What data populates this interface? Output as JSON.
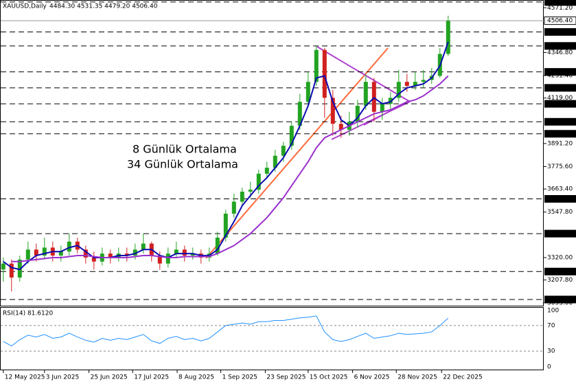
{
  "chart_data": [
    {
      "type": "candlestick",
      "title": "XAUUSD,Daily",
      "subtitle": "4484.30 4531.35 4479.20 4506.40",
      "xlim": [
        -0.4,
        65.6
      ],
      "xticks": [
        {
          "value": 0,
          "label": "12 May 2025"
        },
        {
          "value": 5,
          "label": "3 Jun 2025"
        },
        {
          "value": 10.4,
          "label": "25 Jun 2025"
        },
        {
          "value": 15.7,
          "label": "17 Jul 2025"
        },
        {
          "value": 21.1,
          "label": "8 Aug 2025"
        },
        {
          "value": 26.4,
          "label": "1 Sep 2025"
        },
        {
          "value": 31.8,
          "label": "23 Sep 2025"
        },
        {
          "value": 37,
          "label": "15 Oct 2025"
        },
        {
          "value": 42.4,
          "label": "6 Nov 2025"
        },
        {
          "value": 47.7,
          "label": "28 Nov 2025"
        },
        {
          "value": 53.2,
          "label": "22 Dec 2025"
        }
      ],
      "ylim": [
        3079,
        4610
      ],
      "yticks": [
        {
          "value": 4571.2,
          "label": "4571.20"
        },
        {
          "value": 4346.8,
          "label": "4346.80"
        },
        {
          "value": 4231.4,
          "label": "4231.40"
        },
        {
          "value": 4119,
          "label": "4119.00"
        },
        {
          "value": 3891.2,
          "label": "3891.20"
        },
        {
          "value": 3775.6,
          "label": "3775.60"
        },
        {
          "value": 3663.4,
          "label": "3663.40"
        },
        {
          "value": 3547.8,
          "label": "3547.80"
        },
        {
          "value": 3320,
          "label": "3320.00"
        },
        {
          "value": 3207.8,
          "label": "3207.80"
        },
        {
          "value": 3093,
          "label": "3093.00"
        }
      ],
      "levels": [
        {
          "value": 4600,
          "label": "4600.00"
        },
        {
          "value": 4450,
          "label": "4450.00"
        },
        {
          "value": 4380,
          "label": "4380.00"
        },
        {
          "value": 4250,
          "label": "4250.00"
        },
        {
          "value": 4170,
          "label": "4170.00"
        },
        {
          "value": 4090,
          "label": "4090.00"
        },
        {
          "value": 4000,
          "label": "4000.00"
        },
        {
          "value": 3940,
          "label": "3940.00"
        },
        {
          "value": 3614,
          "label": "3614.00"
        },
        {
          "value": 3440,
          "label": "3440.00"
        },
        {
          "value": 3250,
          "label": "3250.00"
        },
        {
          "value": 3110,
          "label": "3110.00"
        }
      ],
      "last_price": {
        "value": 4506.4,
        "label": "4506.40"
      },
      "up_color": "#22a322",
      "down_color": "#d02020",
      "open": [
        3260,
        3290,
        3220,
        3310,
        3360,
        3330,
        3370,
        3330,
        3350,
        3400,
        3360,
        3320,
        3300,
        3340,
        3320,
        3340,
        3330,
        3360,
        3390,
        3330,
        3290,
        3340,
        3360,
        3330,
        3340,
        3320,
        3340,
        3420,
        3540,
        3600,
        3650,
        3660,
        3740,
        3770,
        3830,
        3880,
        3980,
        4100,
        4200,
        4360,
        4120,
        3990,
        3960,
        4000,
        4080,
        4200,
        4050,
        4090,
        4120,
        4200,
        4180,
        4200,
        4210,
        4230,
        4340
      ],
      "high": [
        3320,
        3310,
        3330,
        3400,
        3390,
        3420,
        3400,
        3380,
        3440,
        3420,
        3380,
        3350,
        3370,
        3360,
        3370,
        3370,
        3390,
        3440,
        3400,
        3350,
        3370,
        3400,
        3380,
        3370,
        3360,
        3370,
        3450,
        3560,
        3640,
        3670,
        3700,
        3760,
        3800,
        3860,
        3900,
        4000,
        4140,
        4250,
        4380,
        4370,
        4160,
        4030,
        4050,
        4110,
        4240,
        4220,
        4120,
        4150,
        4260,
        4240,
        4250,
        4260,
        4270,
        4370,
        4531.35
      ],
      "low": [
        3200,
        3150,
        3200,
        3290,
        3300,
        3310,
        3300,
        3300,
        3330,
        3340,
        3290,
        3260,
        3280,
        3290,
        3300,
        3300,
        3310,
        3340,
        3300,
        3260,
        3270,
        3320,
        3300,
        3310,
        3290,
        3300,
        3330,
        3400,
        3520,
        3580,
        3620,
        3640,
        3720,
        3750,
        3800,
        3860,
        3960,
        4080,
        4180,
        4020,
        3930,
        3920,
        3930,
        3970,
        4060,
        4000,
        4010,
        4060,
        4100,
        4150,
        4160,
        4170,
        4190,
        4220,
        4330
      ],
      "close": [
        3290,
        3220,
        3310,
        3360,
        3330,
        3370,
        3330,
        3350,
        3400,
        3360,
        3320,
        3300,
        3340,
        3320,
        3340,
        3330,
        3360,
        3390,
        3330,
        3290,
        3340,
        3360,
        3330,
        3340,
        3320,
        3340,
        3420,
        3540,
        3600,
        3650,
        3660,
        3740,
        3770,
        3830,
        3880,
        3980,
        4100,
        4200,
        4360,
        4120,
        3990,
        3960,
        4000,
        4080,
        4200,
        4050,
        4090,
        4120,
        4200,
        4180,
        4200,
        4210,
        4230,
        4340,
        4506.4
      ],
      "series": [
        {
          "name": "8 Günlük Ortalama",
          "color": "#0b0bb0",
          "values": [
            3300,
            3270,
            3260,
            3300,
            3330,
            3340,
            3350,
            3350,
            3370,
            3380,
            3350,
            3320,
            3320,
            3320,
            3330,
            3330,
            3340,
            3360,
            3360,
            3330,
            3320,
            3340,
            3340,
            3340,
            3330,
            3330,
            3360,
            3430,
            3500,
            3580,
            3630,
            3680,
            3720,
            3770,
            3820,
            3890,
            3980,
            4080,
            4220,
            4230,
            4100,
            4010,
            3980,
            4020,
            4080,
            4120,
            4090,
            4100,
            4140,
            4170,
            4180,
            4190,
            4220,
            4280,
            4400
          ]
        },
        {
          "name": "34 Günlük Ortalama",
          "color": "#9a30cc",
          "values": [
            null,
            3300,
            3300,
            3305,
            3310,
            3315,
            3320,
            3320,
            3325,
            3330,
            3330,
            3325,
            3320,
            3320,
            3320,
            3320,
            3325,
            3330,
            3330,
            3325,
            3320,
            3320,
            3325,
            3325,
            3325,
            3325,
            3340,
            3360,
            3380,
            3410,
            3440,
            3480,
            3520,
            3570,
            3620,
            3680,
            3740,
            3800,
            3870,
            3920,
            3940,
            3960,
            3980,
            4000,
            4020,
            4040,
            4050,
            4060,
            4080,
            4100,
            4110,
            4130,
            4160,
            4190,
            4230
          ]
        }
      ]
    },
    {
      "type": "line",
      "title": "RSI(14) 81.6120",
      "color": "#1e90ff",
      "ylim": [
        0,
        100
      ],
      "yticks": [
        100,
        70,
        30,
        0
      ],
      "values": [
        45,
        38,
        48,
        55,
        52,
        56,
        50,
        52,
        58,
        52,
        47,
        44,
        50,
        47,
        50,
        48,
        52,
        56,
        46,
        42,
        50,
        53,
        48,
        50,
        46,
        50,
        60,
        70,
        72,
        74,
        72,
        76,
        76,
        78,
        78,
        80,
        82,
        83,
        85,
        60,
        48,
        45,
        48,
        53,
        58,
        50,
        52,
        54,
        58,
        56,
        57,
        58,
        60,
        70,
        81.6
      ]
    }
  ]
}
